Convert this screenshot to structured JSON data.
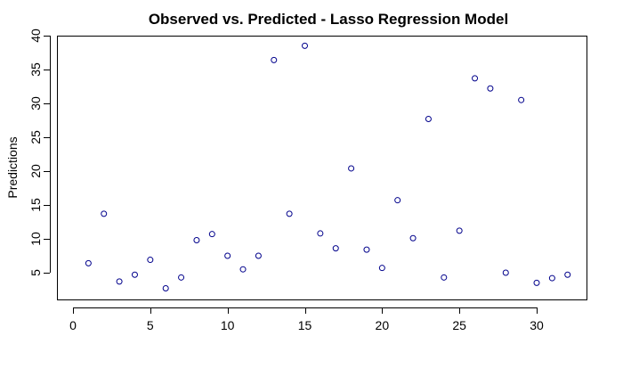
{
  "chart_data": {
    "type": "scatter",
    "title": "Observed vs. Predicted - Lasso Regression Model",
    "xlabel": "",
    "ylabel": "Predictions",
    "xlim": [
      0,
      33
    ],
    "ylim": [
      1,
      40
    ],
    "x_ticks": [
      0,
      5,
      10,
      15,
      20,
      25,
      30
    ],
    "y_ticks": [
      5,
      10,
      15,
      20,
      25,
      30,
      35,
      40
    ],
    "grid": false,
    "point_color": "#00008b",
    "marker": "open-circle",
    "x": [
      1,
      2,
      3,
      4,
      5,
      6,
      7,
      8,
      9,
      10,
      11,
      12,
      13,
      14,
      15,
      16,
      17,
      18,
      19,
      20,
      21,
      22,
      23,
      24,
      25,
      26,
      27,
      28,
      29,
      30,
      31,
      32
    ],
    "y": [
      6.4,
      13.7,
      3.7,
      4.7,
      6.9,
      2.7,
      4.3,
      9.8,
      10.7,
      7.5,
      5.5,
      7.5,
      36.4,
      13.7,
      38.5,
      10.8,
      8.6,
      20.4,
      8.4,
      5.7,
      15.7,
      10.1,
      27.7,
      4.3,
      11.2,
      33.7,
      32.2,
      5.0,
      30.5,
      3.5,
      4.2,
      4.7
    ]
  }
}
